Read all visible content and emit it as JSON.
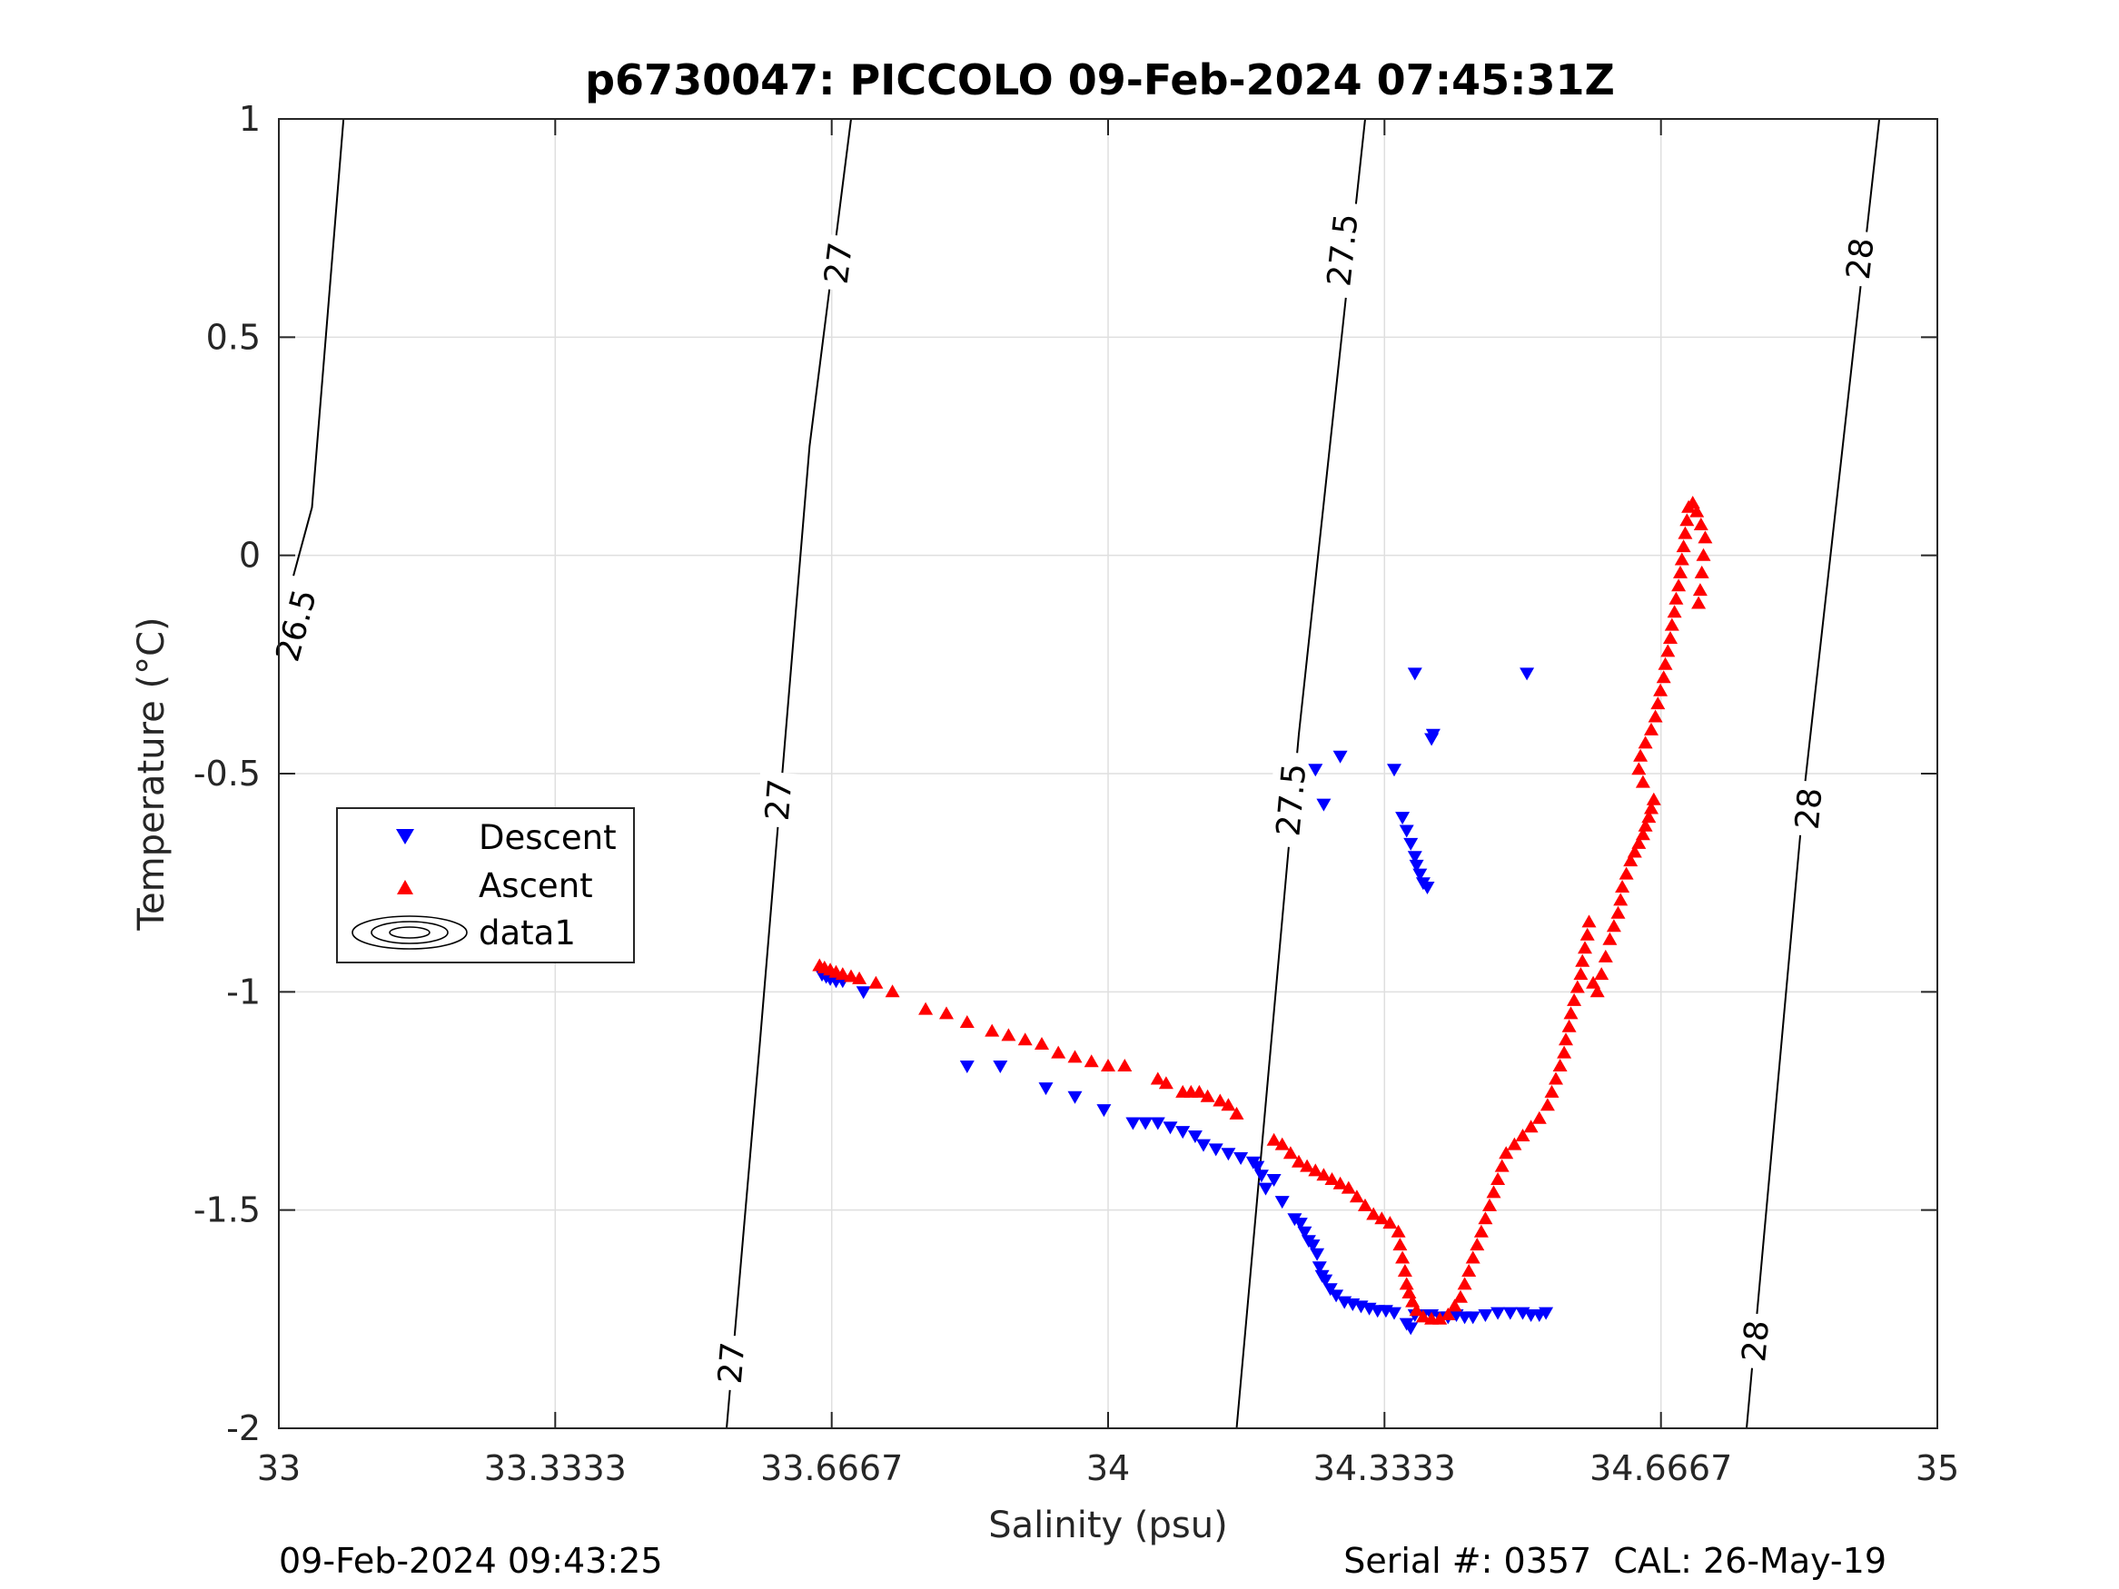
{
  "chart_data": {
    "type": "scatter",
    "title": "p6730047: PICCOLO 09-Feb-2024 07:45:31Z",
    "xlabel": "Salinity (psu)",
    "ylabel": "Temperature (°C)",
    "xlim": [
      33,
      35
    ],
    "ylim": [
      -2,
      1
    ],
    "x_ticks": [
      33,
      33.3333,
      33.6667,
      34,
      34.3333,
      34.6667,
      35
    ],
    "x_tick_labels": [
      "33",
      "33.3333",
      "33.6667",
      "34",
      "34.3333",
      "34.6667",
      "35"
    ],
    "y_ticks": [
      -2,
      -1.5,
      -1,
      -0.5,
      0,
      0.5,
      1
    ],
    "y_tick_labels": [
      "-2",
      "-1.5",
      "-1",
      "-0.5",
      "0",
      "0.5",
      "1"
    ],
    "grid": true,
    "legend_position": "middle-left",
    "legend": [
      {
        "name": "Descent",
        "marker": "triangle-down",
        "color": "#0000ff"
      },
      {
        "name": "Ascent",
        "marker": "triangle-up",
        "color": "#ff0000"
      },
      {
        "name": "data1",
        "marker": "contour",
        "color": "#000000"
      }
    ],
    "density_contours": [
      {
        "level": "26.5",
        "points": [
          [
            33.0,
            -0.17
          ],
          [
            33.04,
            0.11
          ],
          [
            33.078,
            1.0
          ]
        ],
        "labels": [
          {
            "text": "26.5",
            "at": [
              33.02,
              -0.16
            ]
          }
        ]
      },
      {
        "level": "27",
        "points": [
          [
            33.54,
            -2.0
          ],
          [
            33.58,
            -1.12
          ],
          [
            33.64,
            0.25
          ],
          [
            33.69,
            1.0
          ]
        ],
        "labels": [
          {
            "text": "27",
            "at": [
              33.545,
              -1.85
            ]
          },
          {
            "text": "27",
            "at": [
              33.602,
              -0.56
            ]
          },
          {
            "text": "27",
            "at": [
              33.674,
              0.67
            ]
          }
        ]
      },
      {
        "level": "27.5",
        "points": [
          [
            34.155,
            -2.0
          ],
          [
            34.23,
            -0.41
          ],
          [
            34.31,
            1.0
          ]
        ],
        "labels": [
          {
            "text": "27.5",
            "at": [
              34.22,
              -0.56
            ]
          },
          {
            "text": "27.5",
            "at": [
              34.282,
              0.7
            ]
          }
        ]
      },
      {
        "level": "28",
        "points": [
          [
            34.77,
            -2.0
          ],
          [
            34.84,
            -0.53
          ],
          [
            34.93,
            1.0
          ]
        ],
        "labels": [
          {
            "text": "28",
            "at": [
              34.78,
              -1.8
            ]
          },
          {
            "text": "28",
            "at": [
              34.844,
              -0.58
            ]
          },
          {
            "text": "28",
            "at": [
              34.906,
              0.68
            ]
          }
        ]
      }
    ],
    "series": [
      {
        "name": "Descent",
        "marker": "triangle-down",
        "color": "#0000ff",
        "points": [
          [
            33.655,
            -0.96
          ],
          [
            33.66,
            -0.965
          ],
          [
            33.665,
            -0.97
          ],
          [
            33.672,
            -0.975
          ],
          [
            33.68,
            -0.975
          ],
          [
            33.705,
            -1.0
          ],
          [
            33.83,
            -1.17
          ],
          [
            33.87,
            -1.17
          ],
          [
            33.925,
            -1.22
          ],
          [
            33.96,
            -1.24
          ],
          [
            33.995,
            -1.27
          ],
          [
            34.03,
            -1.3
          ],
          [
            34.045,
            -1.3
          ],
          [
            34.06,
            -1.3
          ],
          [
            34.075,
            -1.31
          ],
          [
            34.09,
            -1.32
          ],
          [
            34.105,
            -1.33
          ],
          [
            34.115,
            -1.35
          ],
          [
            34.13,
            -1.36
          ],
          [
            34.145,
            -1.37
          ],
          [
            34.16,
            -1.38
          ],
          [
            34.175,
            -1.39
          ],
          [
            34.18,
            -1.4
          ],
          [
            34.185,
            -1.42
          ],
          [
            34.19,
            -1.45
          ],
          [
            34.2,
            -1.43
          ],
          [
            34.21,
            -1.48
          ],
          [
            34.225,
            -1.52
          ],
          [
            34.232,
            -1.53
          ],
          [
            34.237,
            -1.55
          ],
          [
            34.242,
            -1.57
          ],
          [
            34.247,
            -1.58
          ],
          [
            34.252,
            -1.6
          ],
          [
            34.255,
            -1.63
          ],
          [
            34.258,
            -1.65
          ],
          [
            34.262,
            -1.66
          ],
          [
            34.268,
            -1.68
          ],
          [
            34.275,
            -1.695
          ],
          [
            34.285,
            -1.71
          ],
          [
            34.295,
            -1.715
          ],
          [
            34.305,
            -1.72
          ],
          [
            34.315,
            -1.725
          ],
          [
            34.325,
            -1.73
          ],
          [
            34.335,
            -1.73
          ],
          [
            34.345,
            -1.735
          ],
          [
            34.36,
            -1.76
          ],
          [
            34.365,
            -1.77
          ],
          [
            34.37,
            -1.74
          ],
          [
            34.38,
            -1.74
          ],
          [
            34.39,
            -1.74
          ],
          [
            34.4,
            -1.745
          ],
          [
            34.41,
            -1.745
          ],
          [
            34.42,
            -1.74
          ],
          [
            34.43,
            -1.745
          ],
          [
            34.44,
            -1.745
          ],
          [
            34.455,
            -1.74
          ],
          [
            34.47,
            -1.735
          ],
          [
            34.485,
            -1.735
          ],
          [
            34.5,
            -1.735
          ],
          [
            34.51,
            -1.74
          ],
          [
            34.52,
            -1.74
          ],
          [
            34.528,
            -1.735
          ],
          [
            34.25,
            -0.49
          ],
          [
            34.26,
            -0.57
          ],
          [
            34.28,
            -0.46
          ],
          [
            34.345,
            -0.49
          ],
          [
            34.355,
            -0.6
          ],
          [
            34.36,
            -0.63
          ],
          [
            34.365,
            -0.66
          ],
          [
            34.37,
            -0.69
          ],
          [
            34.372,
            -0.71
          ],
          [
            34.376,
            -0.73
          ],
          [
            34.38,
            -0.75
          ],
          [
            34.385,
            -0.76
          ],
          [
            34.39,
            -0.42
          ],
          [
            34.392,
            -0.41
          ],
          [
            34.37,
            -0.27
          ],
          [
            34.505,
            -0.27
          ]
        ]
      },
      {
        "name": "Ascent",
        "marker": "triangle-up",
        "color": "#ff0000",
        "points": [
          [
            33.652,
            -0.94
          ],
          [
            33.658,
            -0.945
          ],
          [
            33.665,
            -0.95
          ],
          [
            33.672,
            -0.955
          ],
          [
            33.68,
            -0.96
          ],
          [
            33.69,
            -0.965
          ],
          [
            33.7,
            -0.97
          ],
          [
            33.72,
            -0.98
          ],
          [
            33.74,
            -1.0
          ],
          [
            33.78,
            -1.04
          ],
          [
            33.805,
            -1.05
          ],
          [
            33.83,
            -1.07
          ],
          [
            33.86,
            -1.09
          ],
          [
            33.88,
            -1.1
          ],
          [
            33.9,
            -1.11
          ],
          [
            33.92,
            -1.12
          ],
          [
            33.94,
            -1.14
          ],
          [
            33.96,
            -1.15
          ],
          [
            33.98,
            -1.16
          ],
          [
            34.0,
            -1.17
          ],
          [
            34.02,
            -1.17
          ],
          [
            34.06,
            -1.2
          ],
          [
            34.07,
            -1.21
          ],
          [
            34.09,
            -1.23
          ],
          [
            34.1,
            -1.23
          ],
          [
            34.11,
            -1.23
          ],
          [
            34.12,
            -1.24
          ],
          [
            34.135,
            -1.25
          ],
          [
            34.145,
            -1.26
          ],
          [
            34.155,
            -1.28
          ],
          [
            34.2,
            -1.34
          ],
          [
            34.21,
            -1.35
          ],
          [
            34.22,
            -1.37
          ],
          [
            34.23,
            -1.39
          ],
          [
            34.24,
            -1.4
          ],
          [
            34.25,
            -1.41
          ],
          [
            34.26,
            -1.42
          ],
          [
            34.27,
            -1.43
          ],
          [
            34.28,
            -1.44
          ],
          [
            34.29,
            -1.45
          ],
          [
            34.3,
            -1.47
          ],
          [
            34.31,
            -1.49
          ],
          [
            34.32,
            -1.51
          ],
          [
            34.33,
            -1.52
          ],
          [
            34.34,
            -1.53
          ],
          [
            34.35,
            -1.55
          ],
          [
            34.352,
            -1.58
          ],
          [
            34.355,
            -1.61
          ],
          [
            34.358,
            -1.64
          ],
          [
            34.36,
            -1.67
          ],
          [
            34.363,
            -1.69
          ],
          [
            34.367,
            -1.71
          ],
          [
            34.372,
            -1.73
          ],
          [
            34.38,
            -1.745
          ],
          [
            34.39,
            -1.75
          ],
          [
            34.4,
            -1.75
          ],
          [
            34.41,
            -1.74
          ],
          [
            34.418,
            -1.72
          ],
          [
            34.425,
            -1.7
          ],
          [
            34.43,
            -1.67
          ],
          [
            34.435,
            -1.64
          ],
          [
            34.44,
            -1.61
          ],
          [
            34.445,
            -1.58
          ],
          [
            34.45,
            -1.55
          ],
          [
            34.455,
            -1.52
          ],
          [
            34.46,
            -1.49
          ],
          [
            34.465,
            -1.46
          ],
          [
            34.47,
            -1.43
          ],
          [
            34.475,
            -1.4
          ],
          [
            34.48,
            -1.37
          ],
          [
            34.49,
            -1.35
          ],
          [
            34.5,
            -1.33
          ],
          [
            34.51,
            -1.31
          ],
          [
            34.52,
            -1.29
          ],
          [
            34.53,
            -1.26
          ],
          [
            34.535,
            -1.23
          ],
          [
            34.54,
            -1.2
          ],
          [
            34.545,
            -1.17
          ],
          [
            34.55,
            -1.14
          ],
          [
            34.552,
            -1.11
          ],
          [
            34.556,
            -1.08
          ],
          [
            34.558,
            -1.05
          ],
          [
            34.562,
            -1.02
          ],
          [
            34.566,
            -0.99
          ],
          [
            34.57,
            -0.96
          ],
          [
            34.572,
            -0.93
          ],
          [
            34.575,
            -0.9
          ],
          [
            34.578,
            -0.87
          ],
          [
            34.58,
            -0.84
          ],
          [
            34.585,
            -0.98
          ],
          [
            34.59,
            -1.0
          ],
          [
            34.595,
            -0.96
          ],
          [
            34.6,
            -0.92
          ],
          [
            34.605,
            -0.88
          ],
          [
            34.61,
            -0.85
          ],
          [
            34.615,
            -0.82
          ],
          [
            34.618,
            -0.79
          ],
          [
            34.62,
            -0.76
          ],
          [
            34.625,
            -0.73
          ],
          [
            34.63,
            -0.7
          ],
          [
            34.635,
            -0.68
          ],
          [
            34.64,
            -0.66
          ],
          [
            34.645,
            -0.64
          ],
          [
            34.648,
            -0.62
          ],
          [
            34.652,
            -0.6
          ],
          [
            34.655,
            -0.58
          ],
          [
            34.658,
            -0.56
          ],
          [
            34.645,
            -0.52
          ],
          [
            34.64,
            -0.49
          ],
          [
            34.642,
            -0.46
          ],
          [
            34.648,
            -0.43
          ],
          [
            34.655,
            -0.4
          ],
          [
            34.66,
            -0.37
          ],
          [
            34.663,
            -0.34
          ],
          [
            34.666,
            -0.31
          ],
          [
            34.67,
            -0.28
          ],
          [
            34.672,
            -0.25
          ],
          [
            34.675,
            -0.22
          ],
          [
            34.678,
            -0.19
          ],
          [
            34.68,
            -0.16
          ],
          [
            34.683,
            -0.13
          ],
          [
            34.685,
            -0.1
          ],
          [
            34.688,
            -0.07
          ],
          [
            34.69,
            -0.04
          ],
          [
            34.692,
            -0.01
          ],
          [
            34.694,
            0.02
          ],
          [
            34.696,
            0.05
          ],
          [
            34.698,
            0.08
          ],
          [
            34.7,
            0.11
          ],
          [
            34.705,
            0.12
          ],
          [
            34.71,
            0.1
          ],
          [
            34.715,
            0.07
          ],
          [
            34.72,
            0.04
          ],
          [
            34.718,
            0.0
          ],
          [
            34.716,
            -0.04
          ],
          [
            34.714,
            -0.08
          ],
          [
            34.712,
            -0.11
          ]
        ]
      }
    ]
  },
  "footer": {
    "left": "09-Feb-2024 09:43:25",
    "right": "Serial #: 0357  CAL: 26-May-19"
  }
}
